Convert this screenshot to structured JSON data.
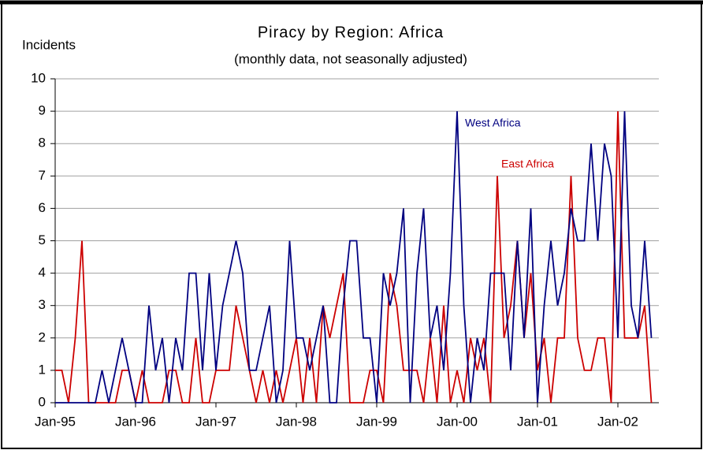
{
  "chart_data": {
    "type": "line",
    "title": "Piracy by Region: Africa",
    "subtitle": "(monthly data, not seasonally adjusted)",
    "y_label": "Incidents",
    "categories": [
      "Jan-95",
      null,
      null,
      null,
      null,
      null,
      null,
      null,
      null,
      null,
      null,
      null,
      "Jan-96",
      null,
      null,
      null,
      null,
      null,
      null,
      null,
      null,
      null,
      null,
      null,
      "Jan-97",
      null,
      null,
      null,
      null,
      null,
      null,
      null,
      null,
      null,
      null,
      null,
      "Jan-98",
      null,
      null,
      null,
      null,
      null,
      null,
      null,
      null,
      null,
      null,
      null,
      "Jan-99",
      null,
      null,
      null,
      null,
      null,
      null,
      null,
      null,
      null,
      null,
      null,
      "Jan-00",
      null,
      null,
      null,
      null,
      null,
      null,
      null,
      null,
      null,
      null,
      null,
      "Jan-01",
      null,
      null,
      null,
      null,
      null,
      null,
      null,
      null,
      null,
      null,
      null,
      "Jan-02",
      null,
      null,
      null,
      null,
      null
    ],
    "series": [
      {
        "name": "West Africa",
        "color": "#000080",
        "values": [
          0,
          0,
          0,
          0,
          0,
          0,
          0,
          1,
          0,
          1,
          2,
          1,
          0,
          0,
          3,
          1,
          2,
          0,
          2,
          1,
          4,
          4,
          1,
          4,
          1,
          3,
          4,
          5,
          4,
          1,
          1,
          2,
          3,
          0,
          1,
          5,
          2,
          2,
          1,
          2,
          3,
          0,
          0,
          3,
          5,
          5,
          2,
          2,
          0,
          4,
          3,
          4,
          6,
          0,
          4,
          6,
          2,
          3,
          1,
          4,
          9,
          3,
          0,
          2,
          1,
          4,
          4,
          4,
          1,
          5,
          2,
          6,
          0,
          3,
          5,
          3,
          4,
          6,
          5,
          5,
          8,
          5,
          8,
          7,
          2,
          9,
          3,
          2,
          5,
          2
        ]
      },
      {
        "name": "East Africa",
        "color": "#cc0000",
        "values": [
          1,
          1,
          0,
          2,
          5,
          0,
          0,
          0,
          0,
          0,
          1,
          1,
          0,
          1,
          0,
          0,
          0,
          1,
          1,
          0,
          0,
          2,
          0,
          0,
          1,
          1,
          1,
          3,
          2,
          1,
          0,
          1,
          0,
          1,
          0,
          1,
          2,
          0,
          2,
          0,
          3,
          2,
          3,
          4,
          0,
          0,
          0,
          1,
          1,
          0,
          4,
          3,
          1,
          1,
          1,
          0,
          2,
          0,
          3,
          0,
          1,
          0,
          2,
          1,
          2,
          0,
          7,
          2,
          3,
          5,
          2,
          4,
          1,
          2,
          0,
          2,
          2,
          7,
          2,
          1,
          1,
          2,
          2,
          0,
          9,
          2,
          2,
          2,
          3,
          0
        ]
      }
    ],
    "ylim": [
      0,
      10
    ],
    "yticks": [
      0,
      1,
      2,
      3,
      4,
      5,
      6,
      7,
      8,
      9,
      10
    ],
    "grid": true
  }
}
